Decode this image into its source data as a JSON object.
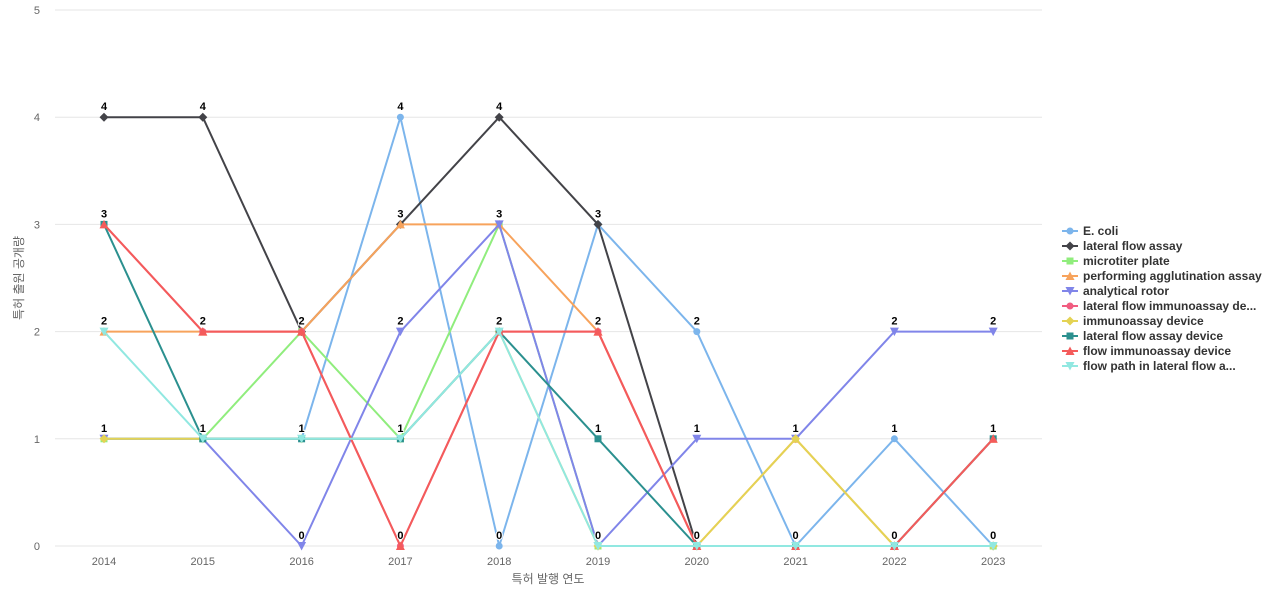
{
  "chart_data": {
    "type": "line",
    "title": "",
    "xlabel": "특허 발행 연도",
    "ylabel": "특허 출원 공개량",
    "x": [
      "2014",
      "2015",
      "2016",
      "2017",
      "2018",
      "2019",
      "2020",
      "2021",
      "2022",
      "2023"
    ],
    "ylim": [
      0,
      5
    ],
    "yticks": [
      "0",
      "1",
      "2",
      "3",
      "4",
      "5"
    ],
    "grid": "horizontal",
    "legend_position": "right",
    "data_labels_shown": true,
    "series": [
      {
        "name": "E. coli",
        "color": "#7cb5ec",
        "marker": "circle",
        "values": [
          1,
          1,
          1,
          4,
          0,
          3,
          2,
          0,
          1,
          0
        ]
      },
      {
        "name": "lateral flow assay",
        "color": "#434348",
        "marker": "diamond",
        "values": [
          4,
          4,
          2,
          3,
          4,
          3,
          0,
          0,
          0,
          0
        ]
      },
      {
        "name": "microtiter plate",
        "color": "#90ed7d",
        "marker": "square",
        "values": [
          1,
          1,
          2,
          1,
          3,
          0,
          0,
          0,
          0,
          0
        ]
      },
      {
        "name": "performing agglutination assay",
        "color": "#f7a35c",
        "marker": "triangle",
        "values": [
          2,
          2,
          2,
          3,
          3,
          2,
          0,
          1,
          0,
          1
        ]
      },
      {
        "name": "analytical rotor",
        "color": "#8085e9",
        "marker": "triangle-down",
        "values": [
          1,
          1,
          0,
          2,
          3,
          0,
          1,
          1,
          2,
          2
        ]
      },
      {
        "name": "lateral flow immunoassay de...",
        "color": "#f15c80",
        "marker": "circle",
        "values": [
          3,
          2,
          2,
          0,
          2,
          2,
          0,
          0,
          0,
          1
        ]
      },
      {
        "name": "immunoassay device",
        "color": "#e4d354",
        "marker": "diamond",
        "values": [
          1,
          1,
          1,
          1,
          2,
          0,
          0,
          1,
          0,
          0
        ]
      },
      {
        "name": "lateral flow assay device",
        "color": "#2b908f",
        "marker": "square",
        "values": [
          3,
          1,
          1,
          1,
          2,
          1,
          0,
          0,
          0,
          1
        ]
      },
      {
        "name": "flow immunoassay device",
        "color": "#f45b5b",
        "marker": "triangle",
        "values": [
          3,
          2,
          2,
          0,
          2,
          2,
          0,
          0,
          0,
          1
        ]
      },
      {
        "name": "flow path in lateral flow a...",
        "color": "#91e8e1",
        "marker": "triangle-down",
        "values": [
          2,
          1,
          1,
          1,
          2,
          0,
          0,
          0,
          0,
          0
        ]
      }
    ],
    "data_labels": {
      "2014": [
        {
          "y": 4,
          "text": "4"
        },
        {
          "y": 3,
          "text": "3"
        },
        {
          "y": 2,
          "text": "2"
        },
        {
          "y": 1,
          "text": "1"
        }
      ],
      "2015": [
        {
          "y": 4,
          "text": "4"
        },
        {
          "y": 2,
          "text": "2"
        },
        {
          "y": 1,
          "text": "1"
        }
      ],
      "2016": [
        {
          "y": 2,
          "text": "2"
        },
        {
          "y": 1,
          "text": "1"
        },
        {
          "y": 0,
          "text": "0"
        }
      ],
      "2017": [
        {
          "y": 4,
          "text": "4"
        },
        {
          "y": 3,
          "text": "3"
        },
        {
          "y": 2,
          "text": "2"
        },
        {
          "y": 1,
          "text": "1"
        },
        {
          "y": 0,
          "text": "0"
        }
      ],
      "2018": [
        {
          "y": 4,
          "text": "4"
        },
        {
          "y": 3,
          "text": "3"
        },
        {
          "y": 2,
          "text": "2"
        },
        {
          "y": 0,
          "text": "0"
        }
      ],
      "2019": [
        {
          "y": 3,
          "text": "3"
        },
        {
          "y": 2,
          "text": "2"
        },
        {
          "y": 1,
          "text": "1"
        },
        {
          "y": 0,
          "text": "0"
        }
      ],
      "2020": [
        {
          "y": 2,
          "text": "2"
        },
        {
          "y": 1,
          "text": "1"
        },
        {
          "y": 0,
          "text": "0"
        }
      ],
      "2021": [
        {
          "y": 1,
          "text": "1"
        },
        {
          "y": 0,
          "text": "0"
        }
      ],
      "2022": [
        {
          "y": 2,
          "text": "2"
        },
        {
          "y": 1,
          "text": "1"
        },
        {
          "y": 0,
          "text": "0"
        }
      ],
      "2023": [
        {
          "y": 2,
          "text": "2"
        },
        {
          "y": 1,
          "text": "1"
        },
        {
          "y": 0,
          "text": "0"
        }
      ]
    }
  }
}
